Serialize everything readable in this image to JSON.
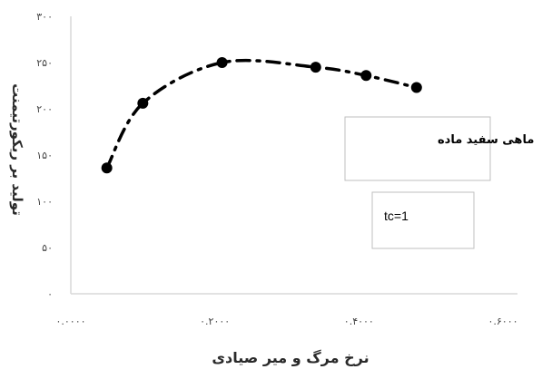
{
  "chart_data": {
    "type": "scatter",
    "xlabel": "نرخ مرگ و میر صیادی",
    "ylabel": "تولید بر ریکورتیمنت",
    "xlim": [
      0,
      0.6
    ],
    "ylim": [
      0,
      300
    ],
    "x_ticks": [
      "۰.۰۰۰۰",
      "۰.۲۰۰۰",
      "۰.۴۰۰۰",
      "۰.۶۰۰۰"
    ],
    "y_ticks": [
      "۰",
      "۵۰",
      "۱۰۰",
      "۱۵۰",
      "۲۰۰",
      "۲۵۰",
      "۳۰۰"
    ],
    "x_tick_values": [
      0,
      0.2,
      0.4,
      0.6
    ],
    "y_tick_values": [
      0,
      50,
      100,
      150,
      200,
      250,
      300
    ],
    "series": [
      {
        "x": [
          0.05,
          0.1,
          0.21,
          0.34,
          0.41,
          0.48
        ],
        "y": [
          136,
          206,
          250,
          245,
          236,
          223
        ]
      }
    ],
    "trendline": {
      "style": "dash-dot",
      "color": "#000000"
    },
    "marker_color": "#000000",
    "grid": false,
    "annotations": [
      {
        "text": "ماهی سفید ماده",
        "bold": true
      },
      {
        "text": "tc=1",
        "bold": false
      }
    ]
  }
}
